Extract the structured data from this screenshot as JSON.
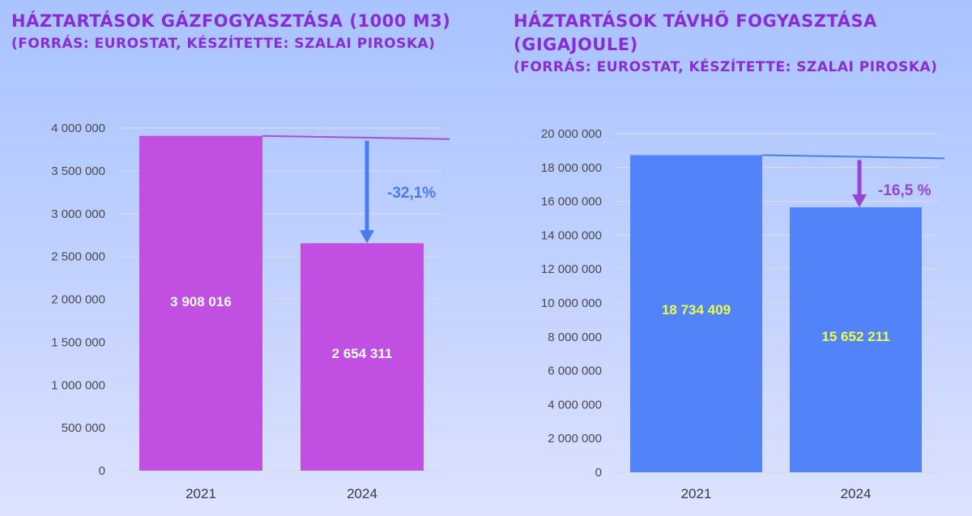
{
  "chart_data": [
    {
      "type": "bar",
      "title": "HÁZTARTÁSOK GÁZFOGYASZTÁSA (1000 M3)",
      "subtitle": "(FORRÁS: EUROSTAT, KÉSZÍTETTE: SZALAI PIROSKA)",
      "categories": [
        "2021",
        "2024"
      ],
      "values": [
        3908016,
        2654311
      ],
      "value_labels": [
        "3 908 016",
        "2 654 311"
      ],
      "ylim": [
        0,
        4000000
      ],
      "y_ticks": [
        0,
        500000,
        1000000,
        1500000,
        2000000,
        2500000,
        3000000,
        3500000,
        4000000
      ],
      "y_tick_labels": [
        "0",
        "500 000",
        "1 000 000",
        "1 500 000",
        "2 000 000",
        "2 500 000",
        "3 000 000",
        "3 500 000",
        "4 000 000"
      ],
      "grid": true,
      "annotation": "-32,1%",
      "bar_color": "#c04fe2",
      "value_label_color": "#ffffff",
      "reference_line_color": "#a452d6",
      "arrow_color": "#4b7bf0",
      "annotation_color": "#4b7bf0"
    },
    {
      "type": "bar",
      "title": "HÁZTARTÁSOK TÁVHŐ FOGYASZTÁSA (GIGAJOULE)",
      "subtitle": "(FORRÁS: EUROSTAT, KÉSZÍTETTE: SZALAI PIROSKA)",
      "categories": [
        "2021",
        "2024"
      ],
      "values": [
        18734409,
        15652211
      ],
      "value_labels": [
        "18 734 409",
        "15 652 211"
      ],
      "ylim": [
        0,
        20000000
      ],
      "y_ticks": [
        0,
        2000000,
        4000000,
        6000000,
        8000000,
        10000000,
        12000000,
        14000000,
        16000000,
        18000000,
        20000000
      ],
      "y_tick_labels": [
        "0",
        "2 000 000",
        "4 000 000",
        "6 000 000",
        "8 000 000",
        "10 000 000",
        "12 000 000",
        "14 000 000",
        "16 000 000",
        "18 000 000",
        "20 000 000"
      ],
      "grid": true,
      "annotation": "-16,5 %",
      "bar_color": "#5283f8",
      "value_label_color": "#e9ff4a",
      "reference_line_color": "#4d7ef0",
      "arrow_color": "#9a45d2",
      "annotation_color": "#9a45d2"
    }
  ]
}
